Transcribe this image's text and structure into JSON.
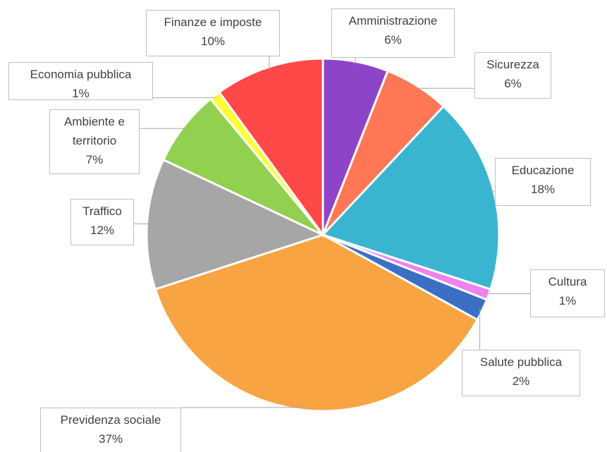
{
  "chart_data": {
    "type": "pie",
    "categories": [
      "Amministrazione",
      "Sicurezza",
      "Educazione",
      "Cultura",
      "Salute pubblica",
      "Previdenza sociale",
      "Traffico",
      "Ambiente e territorio",
      "Economia pubblica",
      "Finanze e imposte"
    ],
    "values": [
      6,
      6,
      18,
      1,
      2,
      37,
      12,
      7,
      1,
      10
    ],
    "value_labels": [
      "6%",
      "6%",
      "18%",
      "1%",
      "2%",
      "37%",
      "12%",
      "7%",
      "1%",
      "10%"
    ],
    "colors": [
      "#8e44c8",
      "#ff7755",
      "#3ab5cf",
      "#ee82ee",
      "#3a6fc4",
      "#f9a443",
      "#a6a6a6",
      "#92d050",
      "#ffff33",
      "#ff4848"
    ]
  }
}
